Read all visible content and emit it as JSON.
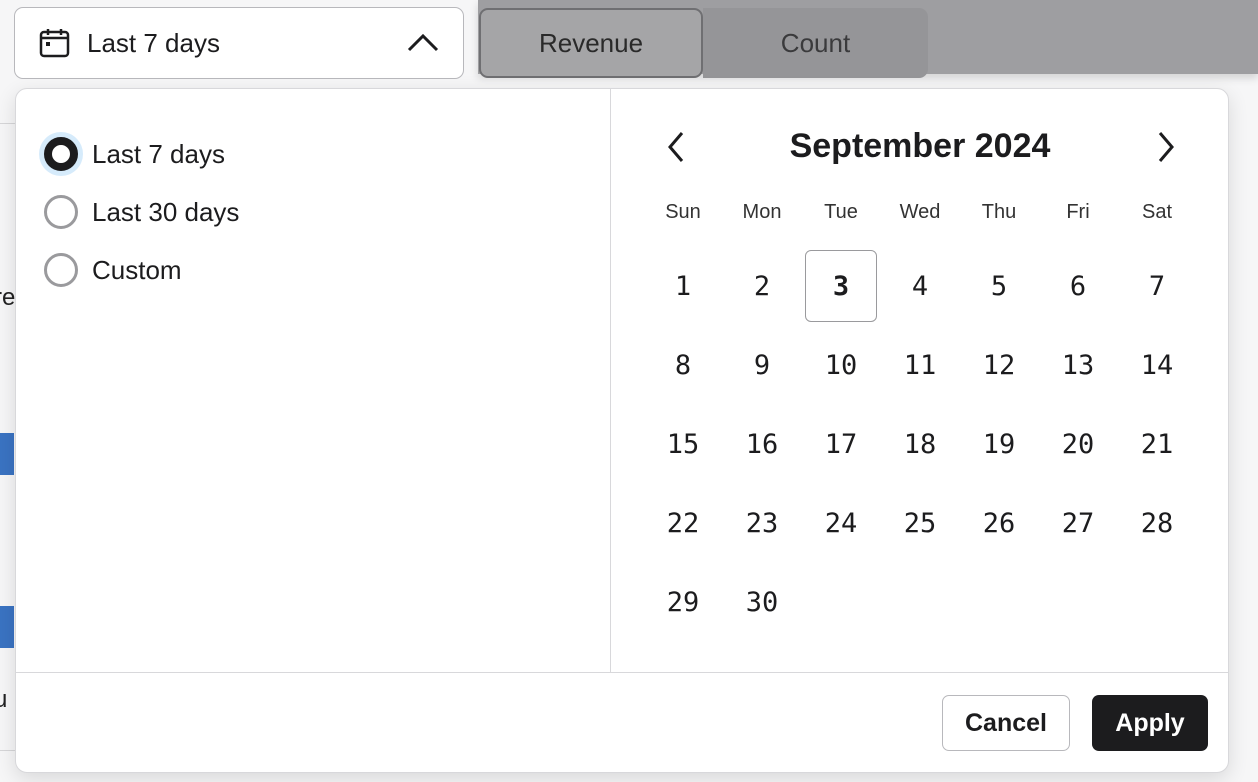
{
  "background": {
    "fragments": [
      "re",
      "u"
    ]
  },
  "date_range_dropdown": {
    "label": "Last 7 days",
    "icon": "calendar-icon",
    "expanded": true
  },
  "metric_toggle": {
    "options": [
      "Revenue",
      "Count"
    ],
    "selected": "Revenue"
  },
  "popover": {
    "range_options": [
      {
        "label": "Last 7 days",
        "selected": true
      },
      {
        "label": "Last 30 days",
        "selected": false
      },
      {
        "label": "Custom",
        "selected": false
      }
    ],
    "calendar": {
      "month_title": "September 2024",
      "weekdays": [
        "Sun",
        "Mon",
        "Tue",
        "Wed",
        "Thu",
        "Fri",
        "Sat"
      ],
      "first_weekday_index": 0,
      "days_in_month": 30,
      "today": 3
    },
    "cancel_label": "Cancel",
    "apply_label": "Apply"
  },
  "colors": {
    "accent": "#1c1c1e",
    "focus_ring": "#d6ebfb",
    "chart_bar": "#3a73c2"
  }
}
